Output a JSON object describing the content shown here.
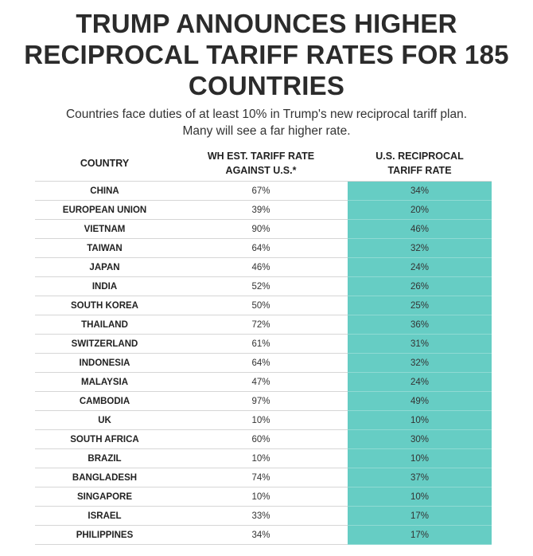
{
  "title": "TRUMP ANNOUNCES HIGHER RECIPROCAL TARIFF RATES FOR 185 COUNTRIES",
  "subtitle_line1": "Countries face duties of at least 10% in Trump's new reciprocal tariff plan.",
  "subtitle_line2": "Many will see a far higher rate.",
  "colors": {
    "accent": "#66cdc4"
  },
  "table": {
    "headers": {
      "country": "COUNTRY",
      "est_line1": "WH EST. TARIFF RATE",
      "est_line2": "AGAINST U.S.*",
      "recip_line1": "U.S. RECIPROCAL",
      "recip_line2": "TARIFF RATE"
    },
    "rows": [
      {
        "country": "CHINA",
        "est": "67%",
        "recip": "34%"
      },
      {
        "country": "EUROPEAN UNION",
        "est": "39%",
        "recip": "20%"
      },
      {
        "country": "VIETNAM",
        "est": "90%",
        "recip": "46%"
      },
      {
        "country": "TAIWAN",
        "est": "64%",
        "recip": "32%"
      },
      {
        "country": "JAPAN",
        "est": "46%",
        "recip": "24%"
      },
      {
        "country": "INDIA",
        "est": "52%",
        "recip": "26%"
      },
      {
        "country": "SOUTH KOREA",
        "est": "50%",
        "recip": "25%"
      },
      {
        "country": "THAILAND",
        "est": "72%",
        "recip": "36%"
      },
      {
        "country": "SWITZERLAND",
        "est": "61%",
        "recip": "31%"
      },
      {
        "country": "INDONESIA",
        "est": "64%",
        "recip": "32%"
      },
      {
        "country": "MALAYSIA",
        "est": "47%",
        "recip": "24%"
      },
      {
        "country": "CAMBODIA",
        "est": "97%",
        "recip": "49%"
      },
      {
        "country": "UK",
        "est": "10%",
        "recip": "10%"
      },
      {
        "country": "SOUTH AFRICA",
        "est": "60%",
        "recip": "30%"
      },
      {
        "country": "BRAZIL",
        "est": "10%",
        "recip": "10%"
      },
      {
        "country": "BANGLADESH",
        "est": "74%",
        "recip": "37%"
      },
      {
        "country": "SINGAPORE",
        "est": "10%",
        "recip": "10%"
      },
      {
        "country": "ISRAEL",
        "est": "33%",
        "recip": "17%"
      },
      {
        "country": "PHILIPPINES",
        "est": "34%",
        "recip": "17%"
      }
    ]
  }
}
